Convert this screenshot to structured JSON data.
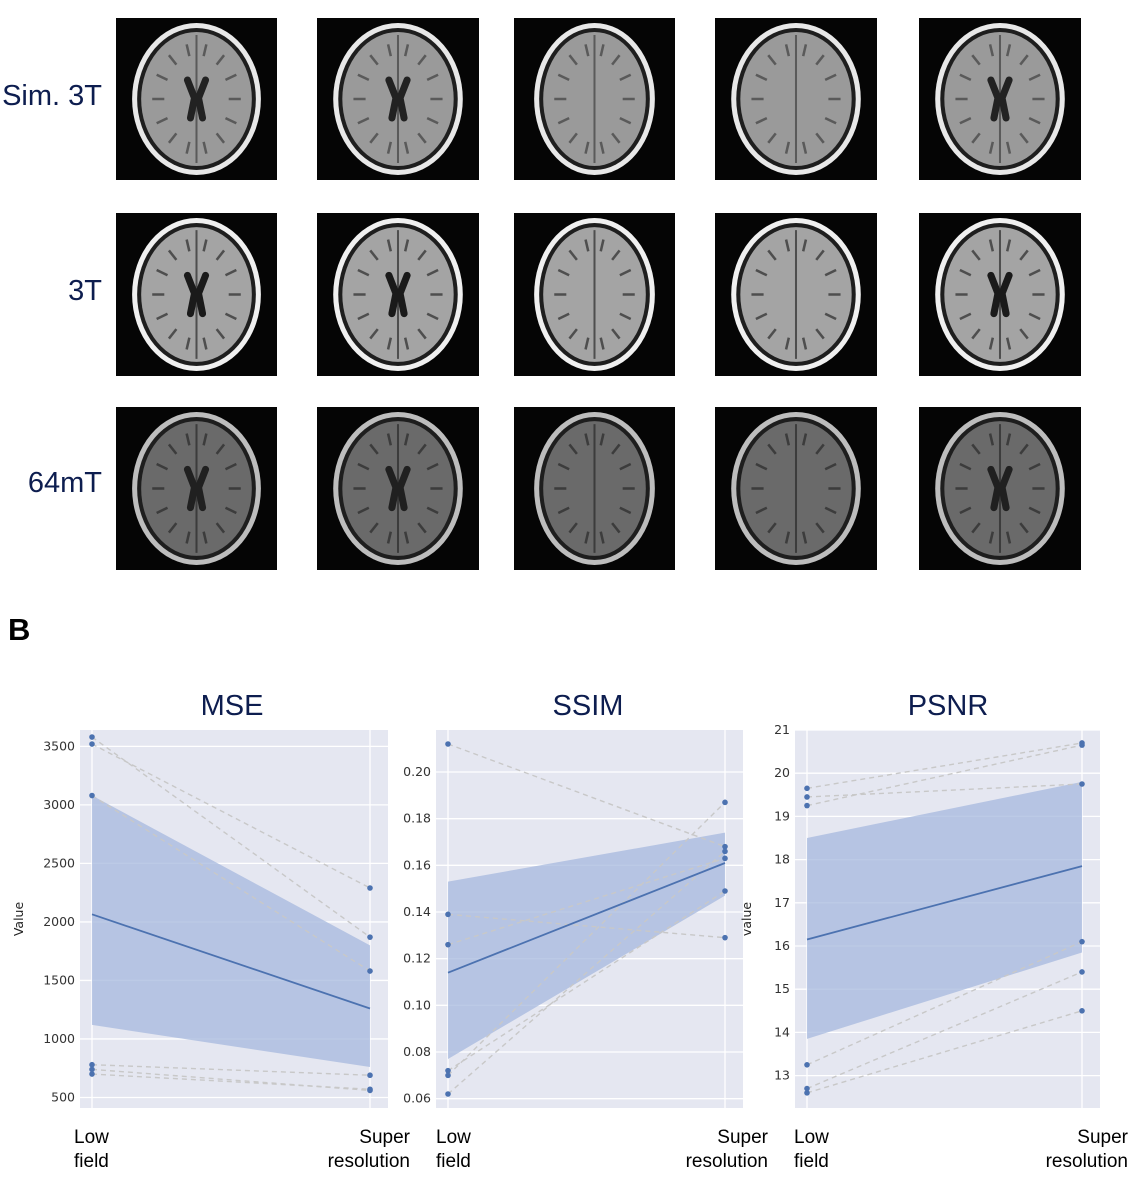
{
  "panel_b_label": "B",
  "row_labels": [
    "Sim. 3T",
    "3T",
    "64mT"
  ],
  "colors": {
    "series": "#4c72b0",
    "band": "#a6b8de",
    "pair": "#c8c8c8",
    "plot_bg": "#e5e7f1",
    "label": "#0d1d4f"
  },
  "chart_data": [
    {
      "type": "line",
      "title": "MSE",
      "ylabel": "Value",
      "categories": [
        "Low field",
        "Super resolution"
      ],
      "ylim": [
        410,
        3640
      ],
      "yticks": [
        500,
        1000,
        1500,
        2000,
        2500,
        3000,
        3500
      ],
      "pairs": [
        [
          3580,
          1870
        ],
        [
          3520,
          2290
        ],
        [
          3080,
          1580
        ],
        [
          780,
          690
        ],
        [
          740,
          560
        ],
        [
          700,
          570
        ]
      ],
      "mean": [
        2065,
        1260
      ],
      "ci_low": [
        1120,
        760
      ],
      "ci_high": [
        3080,
        1800
      ]
    },
    {
      "type": "line",
      "title": "SSIM",
      "ylabel": "",
      "categories": [
        "Low field",
        "Super resolution"
      ],
      "ylim": [
        0.056,
        0.218
      ],
      "yticks": [
        0.06,
        0.08,
        0.1,
        0.12,
        0.14,
        0.16,
        0.18,
        0.2
      ],
      "pairs": [
        [
          0.212,
          0.168
        ],
        [
          0.139,
          0.129
        ],
        [
          0.126,
          0.163
        ],
        [
          0.072,
          0.149
        ],
        [
          0.07,
          0.187
        ],
        [
          0.062,
          0.166
        ]
      ],
      "mean": [
        0.114,
        0.161
      ],
      "ci_low": [
        0.077,
        0.147
      ],
      "ci_high": [
        0.153,
        0.174
      ]
    },
    {
      "type": "line",
      "title": "PSNR",
      "ylabel": "value",
      "categories": [
        "Low field",
        "Super resolution"
      ],
      "ylim": [
        12.25,
        21.0
      ],
      "yticks": [
        13,
        14,
        15,
        16,
        17,
        18,
        19,
        20,
        21
      ],
      "pairs": [
        [
          19.65,
          20.7
        ],
        [
          19.45,
          19.75
        ],
        [
          19.25,
          20.65
        ],
        [
          13.25,
          16.1
        ],
        [
          12.7,
          15.4
        ],
        [
          12.6,
          14.5
        ]
      ],
      "mean": [
        16.15,
        17.85
      ],
      "ci_low": [
        13.85,
        15.85
      ],
      "ci_high": [
        18.5,
        19.8
      ]
    }
  ]
}
